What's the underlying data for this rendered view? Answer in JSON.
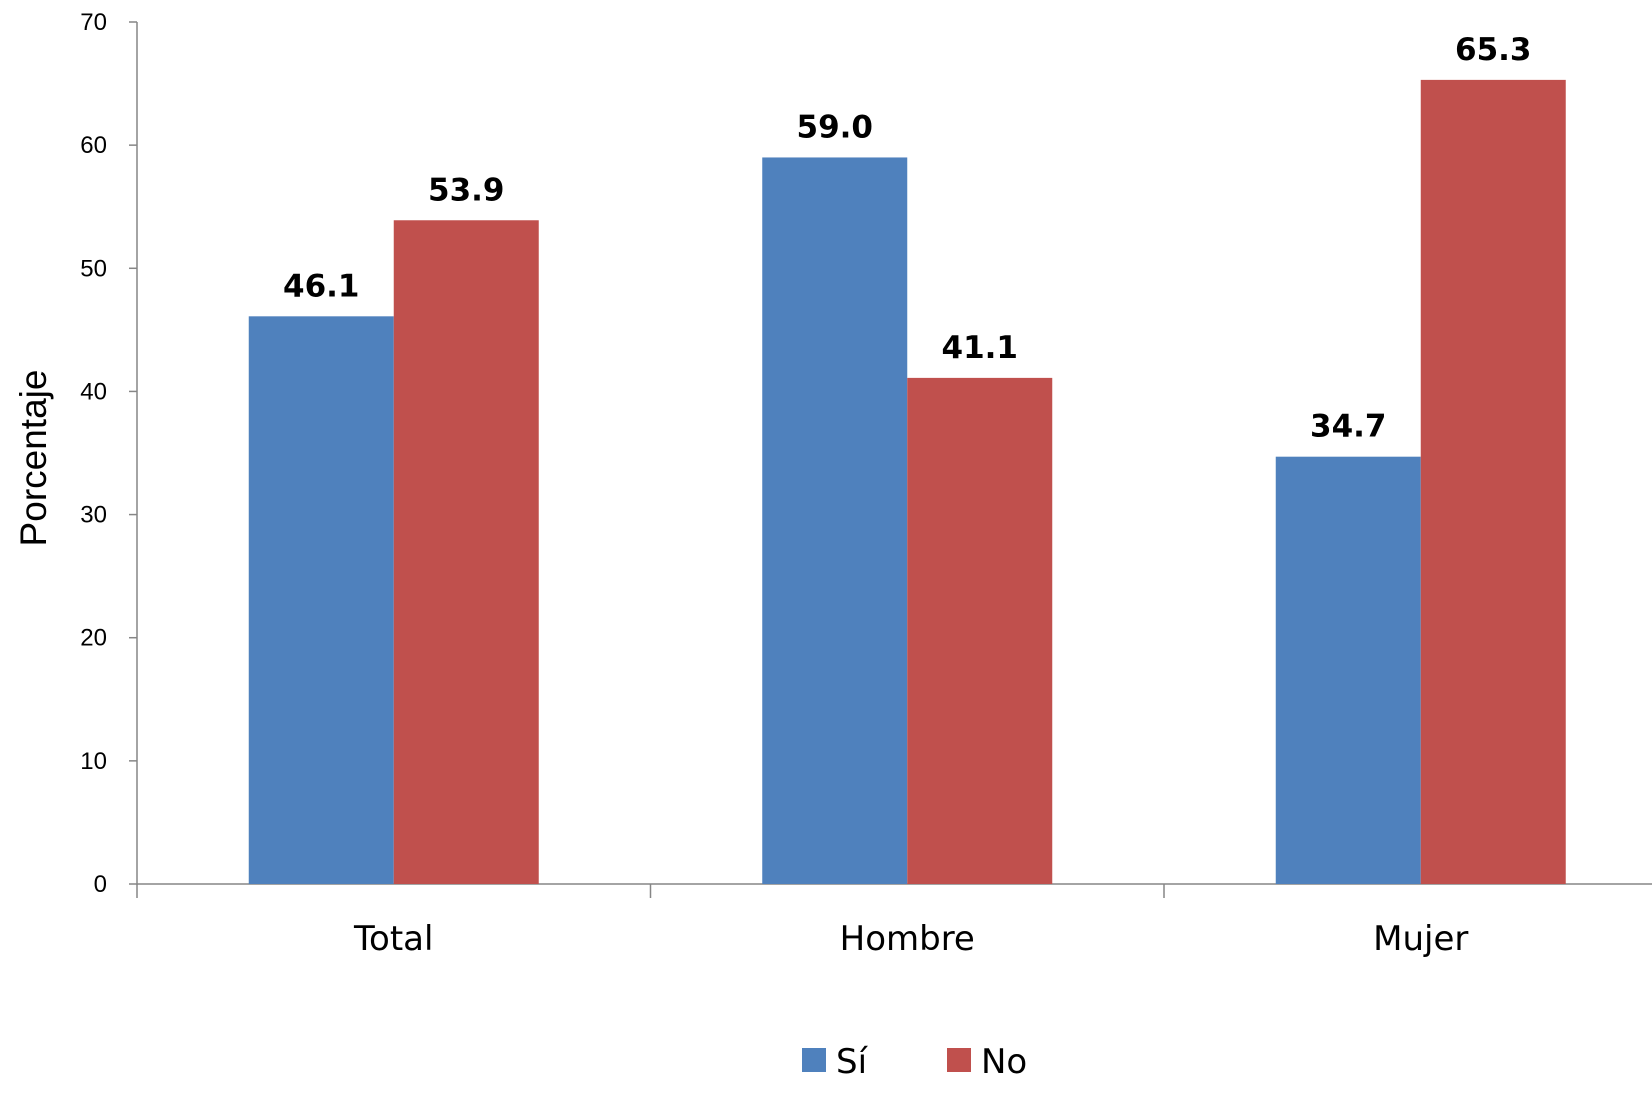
{
  "chart_data": {
    "type": "bar",
    "categories": [
      "Total",
      "Hombre",
      "Mujer"
    ],
    "series": [
      {
        "name": "Sí",
        "values": [
          46.1,
          59.0,
          34.7
        ],
        "color": "#4F81BD"
      },
      {
        "name": "No",
        "values": [
          53.9,
          41.1,
          65.3
        ],
        "color": "#C0504D"
      }
    ],
    "data_labels": [
      [
        "46.1",
        "59.0",
        "34.7"
      ],
      [
        "53.9",
        "41.1",
        "65.3"
      ]
    ],
    "ylabel": "Porcentaje",
    "ylim": [
      0,
      70
    ],
    "yticks": [
      0,
      10,
      20,
      30,
      40,
      50,
      60,
      70
    ],
    "grid": false,
    "legend_position": "bottom"
  }
}
